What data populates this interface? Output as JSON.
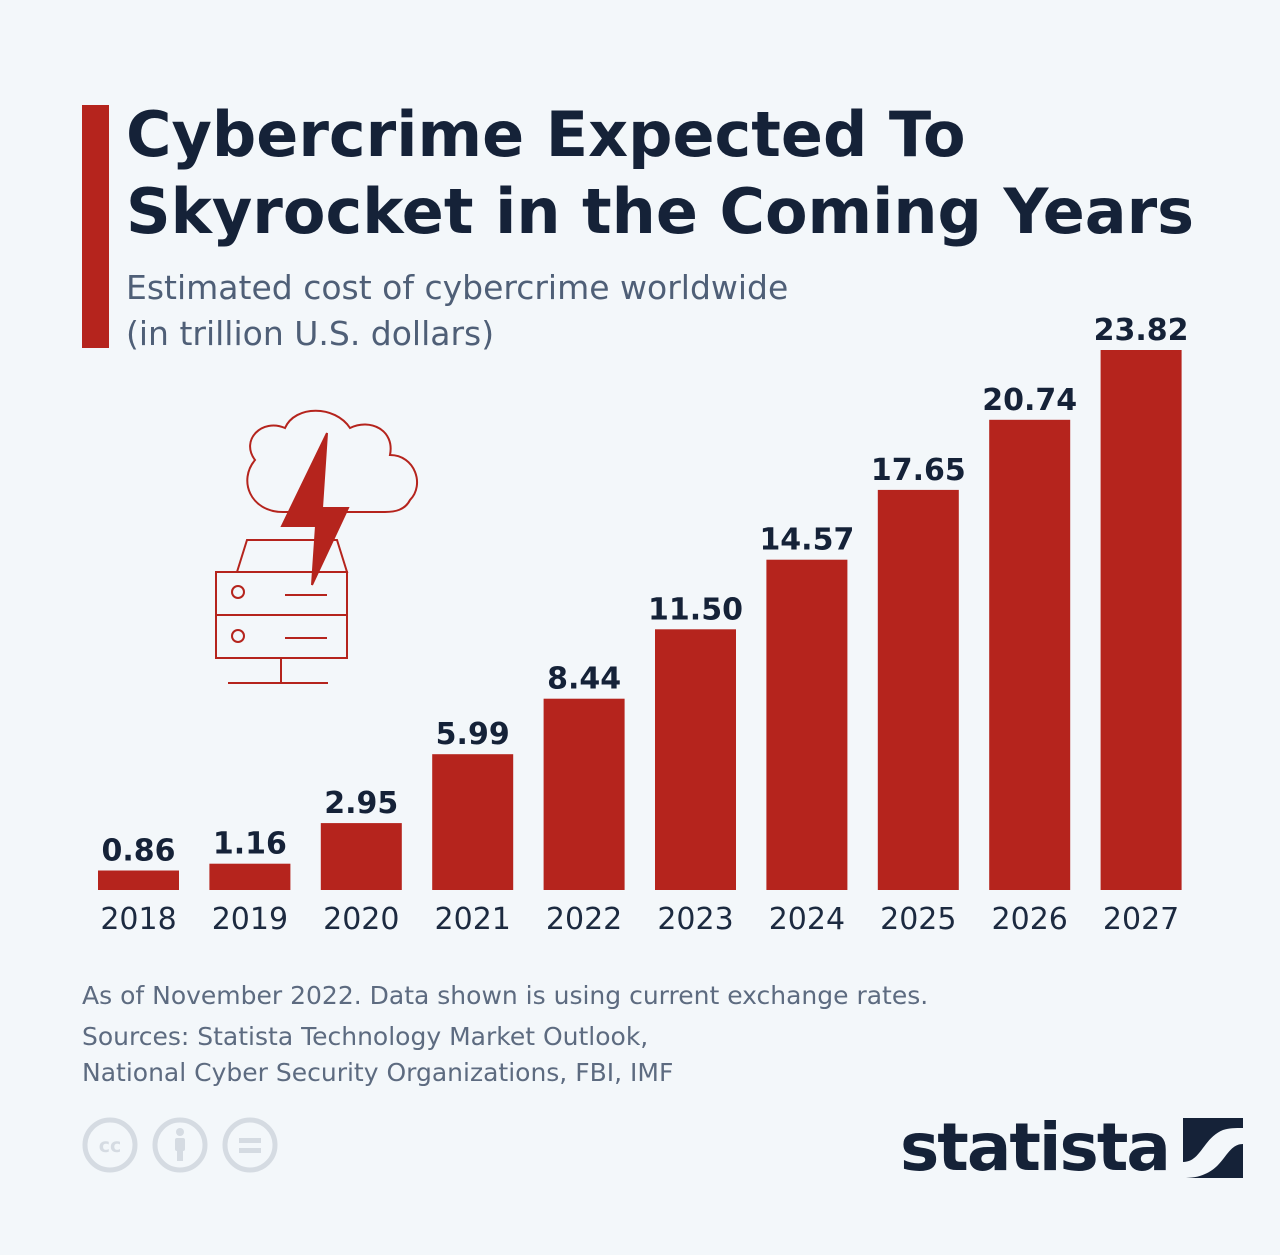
{
  "title": "Cybercrime Expected To Skyrocket in the Coming Years",
  "subtitle_line1": "Estimated cost of cybercrime worldwide",
  "subtitle_line2": "(in trillion U.S. dollars)",
  "notes": {
    "line1": "As of November 2022. Data shown is using current exchange rates.",
    "line2": "Sources: Statista Technology Market Outlook,",
    "line3": "National Cyber Security Organizations, FBI, IMF"
  },
  "brand": {
    "name": "statista"
  },
  "icons": [
    "cloud-lightning-server-icon",
    "creative-commons-icon",
    "attribution-icon",
    "no-derivatives-icon",
    "statista-logo-icon"
  ],
  "colors": {
    "bar": "#b5241d",
    "title": "#152238",
    "background": "#f3f7fa"
  },
  "chart_data": {
    "type": "bar",
    "title": "Cybercrime Expected To Skyrocket in the Coming Years",
    "subtitle": "Estimated cost of cybercrime worldwide (in trillion U.S. dollars)",
    "xlabel": "",
    "ylabel": "",
    "categories": [
      "2018",
      "2019",
      "2020",
      "2021",
      "2022",
      "2023",
      "2024",
      "2025",
      "2026",
      "2027"
    ],
    "values": [
      0.86,
      1.16,
      2.95,
      5.99,
      8.44,
      11.5,
      14.57,
      17.65,
      20.74,
      23.82
    ],
    "value_labels": [
      "0.86",
      "1.16",
      "2.95",
      "5.99",
      "8.44",
      "11.50",
      "14.57",
      "17.65",
      "20.74",
      "23.82"
    ],
    "ylim": [
      0,
      23.82
    ],
    "grid": false,
    "legend": "none"
  }
}
